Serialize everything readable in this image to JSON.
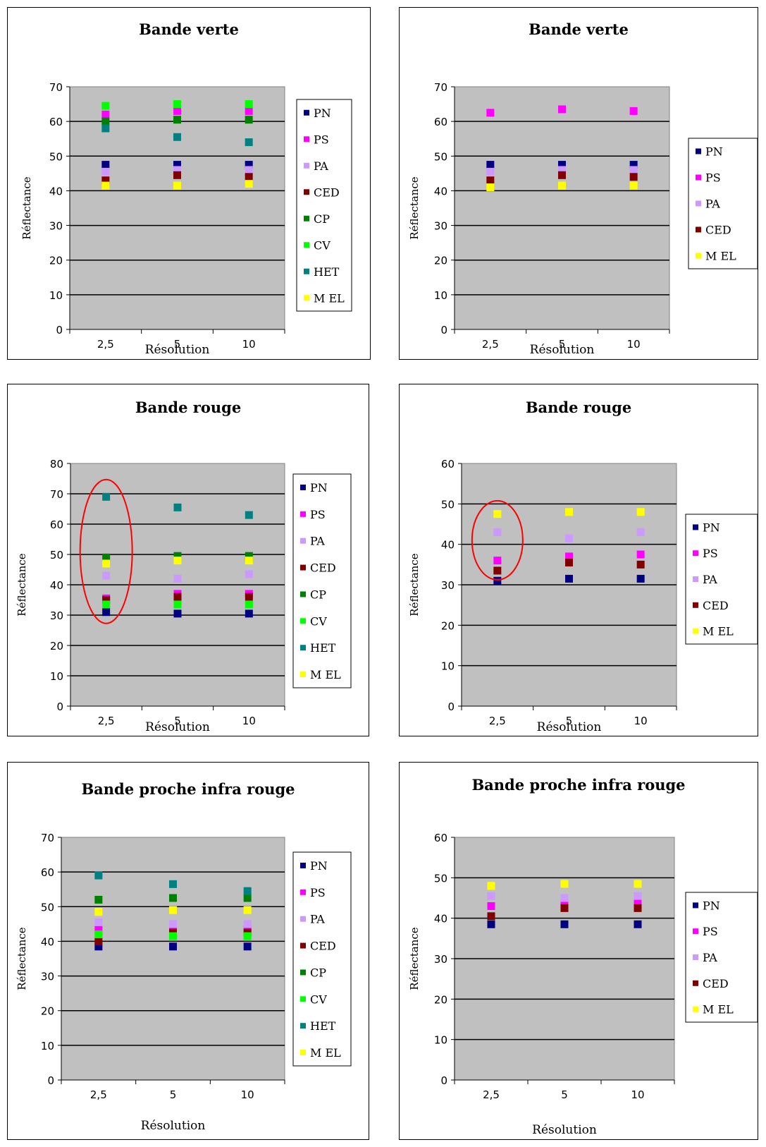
{
  "colors": {
    "PN": "#000080",
    "PS": "#ff00ff",
    "PA": "#cc99ff",
    "CED": "#800000",
    "CP": "#008000",
    "CV": "#00ff00",
    "HET": "#008080",
    "MEL": "#ffff00",
    "plot_bg": "#c0c0c0",
    "annotation_ring": "#ff0000"
  },
  "chart_data": [
    {
      "type": "scatter",
      "title": "Bande verte",
      "xlabel": "Résolution",
      "ylabel": "Réflectance",
      "categories": [
        "2,5",
        "5",
        "10"
      ],
      "ylim": [
        0,
        70
      ],
      "yticks": [
        "0",
        "10",
        "20",
        "30",
        "40",
        "50",
        "60",
        "70"
      ],
      "grid": true,
      "legend": "right",
      "series": [
        {
          "name": "PN",
          "key": "PN",
          "values": [
            47.5,
            47.5,
            47.5
          ]
        },
        {
          "name": "PS",
          "key": "PS",
          "values": [
            62,
            63,
            63
          ]
        },
        {
          "name": "PA",
          "key": "PA",
          "values": [
            45.5,
            46,
            46
          ]
        },
        {
          "name": "CED",
          "key": "CED",
          "values": [
            43,
            44.5,
            44
          ]
        },
        {
          "name": "CP",
          "key": "CP",
          "values": [
            60,
            60.5,
            60.5
          ]
        },
        {
          "name": "CV",
          "key": "CV",
          "values": [
            64.5,
            65,
            65
          ]
        },
        {
          "name": "HET",
          "key": "HET",
          "values": [
            58,
            55.5,
            54
          ]
        },
        {
          "name": "M EL",
          "key": "MEL",
          "values": [
            41.5,
            41.5,
            42
          ]
        }
      ]
    },
    {
      "type": "scatter",
      "title": "Bande verte",
      "xlabel": "Résolution",
      "ylabel": "Réflectance",
      "categories": [
        "2,5",
        "5",
        "10"
      ],
      "ylim": [
        0,
        70
      ],
      "yticks": [
        "0",
        "10",
        "20",
        "30",
        "40",
        "50",
        "60",
        "70"
      ],
      "grid": true,
      "legend": "right",
      "series": [
        {
          "name": "PN",
          "key": "PN",
          "values": [
            47.5,
            47.5,
            47.5
          ]
        },
        {
          "name": "PS",
          "key": "PS",
          "values": [
            62.5,
            63.5,
            63
          ]
        },
        {
          "name": "PA",
          "key": "PA",
          "values": [
            45.5,
            46,
            46
          ]
        },
        {
          "name": "CED",
          "key": "CED",
          "values": [
            43,
            44.5,
            44
          ]
        },
        {
          "name": "M EL",
          "key": "MEL",
          "values": [
            41,
            41.5,
            41.5
          ]
        }
      ]
    },
    {
      "type": "scatter",
      "title": "Bande rouge",
      "xlabel": "Résolution",
      "ylabel": "Réflectance",
      "categories": [
        "2,5",
        "5",
        "10"
      ],
      "ylim": [
        0,
        80
      ],
      "yticks": [
        "0",
        "10",
        "20",
        "30",
        "40",
        "50",
        "60",
        "70",
        "80"
      ],
      "grid": true,
      "legend": "right",
      "annotation": {
        "type": "ellipse",
        "category": "2,5",
        "y": 51
      },
      "series": [
        {
          "name": "PN",
          "key": "PN",
          "values": [
            31,
            30.5,
            30.5
          ]
        },
        {
          "name": "PS",
          "key": "PS",
          "values": [
            35.5,
            37,
            37
          ]
        },
        {
          "name": "PA",
          "key": "PA",
          "values": [
            43,
            42,
            43.5
          ]
        },
        {
          "name": "CED",
          "key": "CED",
          "values": [
            35,
            36,
            36
          ]
        },
        {
          "name": "CP",
          "key": "CP",
          "values": [
            49,
            49.5,
            49.5
          ]
        },
        {
          "name": "CV",
          "key": "CV",
          "values": [
            33.5,
            33.5,
            33.5
          ]
        },
        {
          "name": "HET",
          "key": "HET",
          "values": [
            69,
            65.5,
            63
          ]
        },
        {
          "name": "M EL",
          "key": "MEL",
          "values": [
            47,
            48,
            48
          ]
        }
      ]
    },
    {
      "type": "scatter",
      "title": "Bande rouge",
      "xlabel": "Résolution",
      "ylabel": "Réflectance",
      "categories": [
        "2,5",
        "5",
        "10"
      ],
      "ylim": [
        0,
        60
      ],
      "yticks": [
        "0",
        "10",
        "20",
        "30",
        "40",
        "50",
        "60"
      ],
      "grid": true,
      "legend": "right",
      "annotation": {
        "type": "ellipse",
        "category": "2,5",
        "y": 41
      },
      "series": [
        {
          "name": "PN",
          "key": "PN",
          "values": [
            31,
            31.5,
            31.5
          ]
        },
        {
          "name": "PS",
          "key": "PS",
          "values": [
            36,
            37,
            37.5
          ]
        },
        {
          "name": "PA",
          "key": "PA",
          "values": [
            43,
            41.5,
            43
          ]
        },
        {
          "name": "CED",
          "key": "CED",
          "values": [
            33.5,
            35.5,
            35
          ]
        },
        {
          "name": "M EL",
          "key": "MEL",
          "values": [
            47.5,
            48,
            48
          ]
        }
      ]
    },
    {
      "type": "scatter",
      "title": "Bande proche infra rouge",
      "xlabel": "Résolution",
      "ylabel": "Réflectance",
      "categories": [
        "2,5",
        "5",
        "10"
      ],
      "ylim": [
        0,
        70
      ],
      "yticks": [
        "0",
        "10",
        "20",
        "30",
        "40",
        "50",
        "60",
        "70"
      ],
      "grid": true,
      "legend": "right",
      "series": [
        {
          "name": "PN",
          "key": "PN",
          "values": [
            38.5,
            38.5,
            38.5
          ]
        },
        {
          "name": "PS",
          "key": "PS",
          "values": [
            43.5,
            43.5,
            43.5
          ]
        },
        {
          "name": "PA",
          "key": "PA",
          "values": [
            45.5,
            45,
            45
          ]
        },
        {
          "name": "CED",
          "key": "CED",
          "values": [
            40,
            42.5,
            42.5
          ]
        },
        {
          "name": "CP",
          "key": "CP",
          "values": [
            52,
            52.5,
            52.5
          ]
        },
        {
          "name": "CV",
          "key": "CV",
          "values": [
            42,
            41.5,
            41.5
          ]
        },
        {
          "name": "HET",
          "key": "HET",
          "values": [
            59,
            56.5,
            54.5
          ]
        },
        {
          "name": "M EL",
          "key": "MEL",
          "values": [
            48.5,
            49,
            49
          ]
        }
      ]
    },
    {
      "type": "scatter",
      "title": "Bande proche infra rouge",
      "xlabel": "Résolution",
      "ylabel": "Réflectance",
      "categories": [
        "2,5",
        "5",
        "10"
      ],
      "ylim": [
        0,
        60
      ],
      "yticks": [
        "0",
        "10",
        "20",
        "30",
        "40",
        "50",
        "60"
      ],
      "grid": true,
      "legend": "right",
      "series": [
        {
          "name": "PN",
          "key": "PN",
          "values": [
            38.5,
            38.5,
            38.5
          ]
        },
        {
          "name": "PS",
          "key": "PS",
          "values": [
            43,
            44,
            44
          ]
        },
        {
          "name": "PA",
          "key": "PA",
          "values": [
            45.5,
            45,
            45.5
          ]
        },
        {
          "name": "CED",
          "key": "CED",
          "values": [
            40.5,
            42.5,
            42.5
          ]
        },
        {
          "name": "M EL",
          "key": "MEL",
          "values": [
            48,
            48.5,
            48.5
          ]
        }
      ]
    }
  ]
}
